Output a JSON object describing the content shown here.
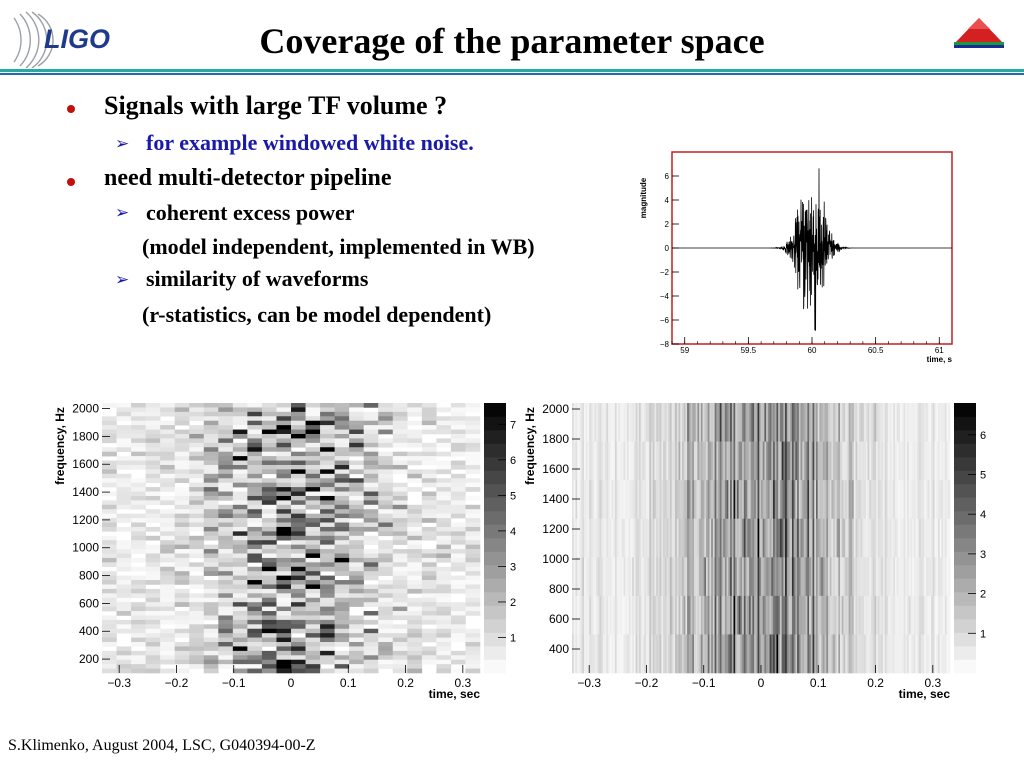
{
  "header": {
    "title": "Coverage of the parameter space",
    "logo_text": "LIGO",
    "accent_teal": "#2aa9a0",
    "accent_blue": "#1b6fb0"
  },
  "bullets": {
    "b1": "Signals with large TF volume ?",
    "b1_sub": "for example windowed white noise.",
    "b2": "need multi-detector pipeline",
    "b2_sub1": "coherent excess power",
    "b2_sub1_note": "(model independent, implemented in WB)",
    "b2_sub2": "similarity of waveforms",
    "b2_sub2_note": "(r-statistics, can be model dependent)"
  },
  "chart_data": [
    {
      "type": "line",
      "ylabel": "magnitude",
      "xlabel": "time, s",
      "xlim": [
        58.9,
        61.1
      ],
      "ylim": [
        -8,
        8
      ],
      "x_ticks": [
        "59",
        "59.5",
        "60",
        "60.5",
        "61"
      ],
      "y_ticks": [
        "−8",
        "−6",
        "−4",
        "−2",
        "0",
        "2",
        "4",
        "6"
      ],
      "signal": {
        "center": 60.0,
        "envelope_width": 0.12,
        "peak_amplitude": 6.3
      },
      "frame_color": "#c02020"
    },
    {
      "type": "heatmap",
      "xlabel": "time, sec",
      "ylabel": "frequency, Hz",
      "xlim": [
        -0.33,
        0.33
      ],
      "ylim": [
        100,
        2040
      ],
      "x_ticks": [
        "−0.3",
        "−0.2",
        "−0.1",
        "0",
        "0.1",
        "0.2",
        "0.3"
      ],
      "y_ticks": [
        "200",
        "400",
        "600",
        "800",
        "1000",
        "1200",
        "1400",
        "1600",
        "1800",
        "2000"
      ],
      "colorbar": {
        "min": 0,
        "max": 7.6,
        "ticks": [
          "1",
          "2",
          "3",
          "4",
          "5",
          "6",
          "7"
        ]
      },
      "resolution": {
        "dt": 0.025,
        "df": 32
      }
    },
    {
      "type": "heatmap",
      "xlabel": "time, sec",
      "ylabel": "frequency, Hz",
      "xlim": [
        -0.33,
        0.33
      ],
      "ylim": [
        240,
        2040
      ],
      "x_ticks": [
        "−0.3",
        "−0.2",
        "−0.1",
        "0",
        "0.1",
        "0.2",
        "0.3"
      ],
      "y_ticks": [
        "400",
        "600",
        "800",
        "1000",
        "1200",
        "1400",
        "1600",
        "1800",
        "2000"
      ],
      "colorbar": {
        "min": 0,
        "max": 6.8,
        "ticks": [
          "1",
          "2",
          "3",
          "4",
          "5",
          "6"
        ]
      },
      "resolution": {
        "dt": 0.003,
        "df": 256
      }
    }
  ],
  "footer": {
    "text": "S.Klimenko, August 2004, LSC, G040394-00-Z"
  }
}
